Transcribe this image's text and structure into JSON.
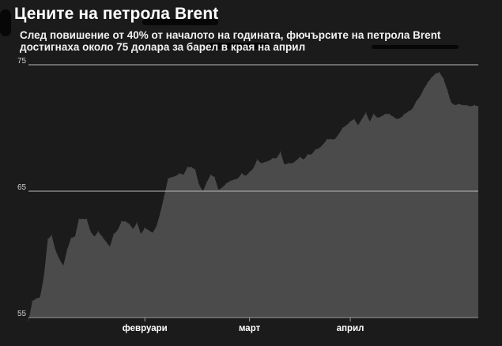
{
  "chart_data": {
    "type": "area",
    "title": "Цените на петрола Brent",
    "subtitle": "След повишение от 40% от началото на годината, фючърсите на петрола Brent достигнаха около 75 долара за барел в края на април",
    "ylim": [
      55,
      75
    ],
    "yticks": [
      55,
      65,
      75
    ],
    "xtick_labels": [
      "февруари",
      "март",
      "април"
    ],
    "xtick_index": [
      30,
      57,
      83
    ],
    "grid": "horizontal",
    "colors": {
      "background": "#1c1b1c",
      "area": "#4b4b4b",
      "gridline": "#b8b8b8",
      "text": "#ffffff"
    },
    "x": [
      0,
      1,
      2,
      3,
      4,
      5,
      6,
      7,
      8,
      9,
      10,
      11,
      12,
      13,
      14,
      15,
      16,
      17,
      18,
      19,
      20,
      21,
      22,
      23,
      24,
      25,
      26,
      27,
      28,
      29,
      30,
      31,
      32,
      33,
      34,
      35,
      36,
      37,
      38,
      39,
      40,
      41,
      42,
      43,
      44,
      45,
      46,
      47,
      48,
      49,
      50,
      51,
      52,
      53,
      54,
      55,
      56,
      57,
      58,
      59,
      60,
      61,
      62,
      63,
      64,
      65,
      66,
      67,
      68,
      69,
      70,
      71,
      72,
      73,
      74,
      75,
      76,
      77,
      78,
      79,
      80,
      81,
      82,
      83,
      84,
      85,
      86,
      87,
      88,
      89,
      90,
      91,
      92,
      93,
      94,
      95,
      96,
      97,
      98,
      99,
      100,
      101,
      102,
      103,
      104,
      105,
      106,
      107,
      108,
      109,
      110,
      111,
      112,
      113,
      114,
      115,
      116
    ],
    "values": [
      54.7,
      56.3,
      56.5,
      56.6,
      58.3,
      61.2,
      61.5,
      60.3,
      59.6,
      59.1,
      60.4,
      61.3,
      61.4,
      62.8,
      62.8,
      62.8,
      61.8,
      61.4,
      61.8,
      61.4,
      61.0,
      60.6,
      61.6,
      61.9,
      62.6,
      62.6,
      62.4,
      62.0,
      62.5,
      61.6,
      62.1,
      61.9,
      61.7,
      62.2,
      63.3,
      64.6,
      66.0,
      66.1,
      66.2,
      66.4,
      66.3,
      66.9,
      66.9,
      66.7,
      65.5,
      65.0,
      65.7,
      66.3,
      66.1,
      65.1,
      65.3,
      65.6,
      65.8,
      65.9,
      66.0,
      66.4,
      66.2,
      66.5,
      66.8,
      67.5,
      67.2,
      67.3,
      67.4,
      67.6,
      67.6,
      68.1,
      67.1,
      67.2,
      67.2,
      67.4,
      67.7,
      67.5,
      67.9,
      67.9,
      68.3,
      68.4,
      68.7,
      69.1,
      69.1,
      69.1,
      69.5,
      70.0,
      70.2,
      70.5,
      70.7,
      70.2,
      70.7,
      71.2,
      70.5,
      71.1,
      70.8,
      70.9,
      71.1,
      71.1,
      70.9,
      70.7,
      70.8,
      71.1,
      71.3,
      71.5,
      72.1,
      72.5,
      73.1,
      73.6,
      74.0,
      74.3,
      74.4,
      73.9,
      73.0,
      72.0,
      71.8,
      71.9,
      71.8,
      71.8,
      71.7,
      71.8,
      71.7
    ]
  }
}
